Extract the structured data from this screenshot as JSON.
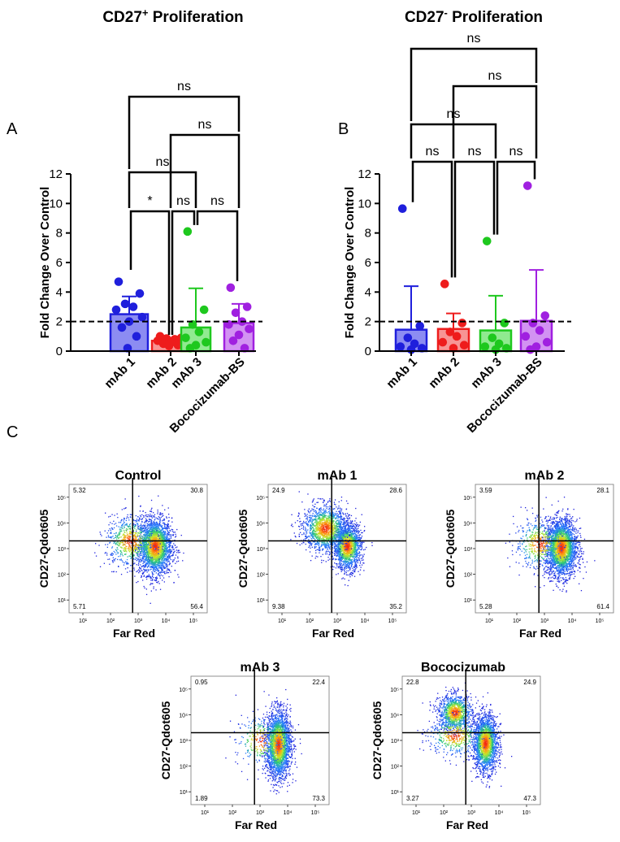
{
  "panel_letters": [
    "A",
    "B",
    "C"
  ],
  "chart_data": [
    {
      "type": "bar",
      "panel": "A",
      "title_main": "CD27",
      "title_sup": "+",
      "title_rest": " Proliferation",
      "ylabel": "Fold Change Over Control",
      "ylim": [
        0,
        12
      ],
      "yticks": [
        "0",
        "2",
        "4",
        "6",
        "8",
        "10",
        "12"
      ],
      "reference_line": 2,
      "categories": [
        "mAb 1",
        "mAb 2",
        "mAb 3",
        "Bococizumab-BS"
      ],
      "colors": [
        "#1f1fdc",
        "#ee1c1c",
        "#1ec81e",
        "#a020e0"
      ],
      "fill_colors": [
        "#8c8cf2",
        "#f79494",
        "#90ea90",
        "#d292f2"
      ],
      "means": [
        2.5,
        0.7,
        1.6,
        1.9
      ],
      "sd_upper": [
        3.7,
        0.9,
        4.25,
        3.2
      ],
      "points": [
        [
          4.7,
          3.9,
          3.2,
          3.0,
          2.8,
          2.3,
          2.0,
          1.6,
          1.0,
          0.2
        ],
        [
          1.0,
          0.9,
          0.85,
          0.8,
          0.7,
          0.6,
          0.55,
          0.5,
          0.4,
          0.35
        ],
        [
          8.1,
          2.8,
          1.8,
          1.3,
          0.9,
          0.6,
          0.4,
          0.2
        ],
        [
          4.3,
          3.0,
          2.6,
          2.0,
          1.8,
          1.5,
          1.1,
          0.7,
          0.2
        ]
      ],
      "brackets": [
        {
          "a": 0,
          "b": 1,
          "label": "*"
        },
        {
          "a": 1,
          "b": 2,
          "label": "ns"
        },
        {
          "a": 2,
          "b": 3,
          "label": "ns"
        },
        {
          "a": 0,
          "b": 2,
          "label": "ns"
        },
        {
          "a": 1,
          "b": 3,
          "label": "ns"
        },
        {
          "a": 0,
          "b": 3,
          "label": "ns"
        }
      ]
    },
    {
      "type": "bar",
      "panel": "B",
      "title_main": "CD27",
      "title_sup": "-",
      "title_rest": " Proliferation",
      "ylabel": "Fold Change Over Control",
      "ylim": [
        0,
        12
      ],
      "yticks": [
        "0",
        "2",
        "4",
        "6",
        "8",
        "10",
        "12"
      ],
      "reference_line": 2,
      "categories": [
        "mAb 1",
        "mAb 2",
        "mAb 3",
        "Bococizumab-BS"
      ],
      "colors": [
        "#1f1fdc",
        "#ee1c1c",
        "#1ec81e",
        "#a020e0"
      ],
      "fill_colors": [
        "#8c8cf2",
        "#f79494",
        "#90ea90",
        "#d292f2"
      ],
      "means": [
        1.45,
        1.5,
        1.4,
        2.05
      ],
      "sd_upper": [
        4.4,
        2.55,
        3.75,
        5.5
      ],
      "points": [
        [
          9.65,
          1.7,
          0.9,
          0.5,
          0.3,
          0.2,
          0.1
        ],
        [
          4.55,
          1.9,
          1.3,
          1.0,
          0.6,
          0.4,
          0.2
        ],
        [
          7.45,
          1.9,
          0.9,
          0.5,
          0.3,
          0.2,
          0.1
        ],
        [
          11.2,
          2.4,
          1.9,
          1.4,
          1.0,
          0.6,
          0.3,
          0.1
        ]
      ],
      "brackets": [
        {
          "a": 0,
          "b": 1,
          "label": "ns"
        },
        {
          "a": 1,
          "b": 2,
          "label": "ns"
        },
        {
          "a": 2,
          "b": 3,
          "label": "ns"
        },
        {
          "a": 0,
          "b": 2,
          "label": "ns"
        },
        {
          "a": 1,
          "b": 3,
          "label": "ns"
        },
        {
          "a": 0,
          "b": 3,
          "label": "ns"
        }
      ]
    },
    {
      "type": "scatter",
      "subtype": "flow-cytometry-density",
      "panel": "C",
      "xlabel": "Far Red",
      "ylabel": "CD27-Qdot605",
      "xticks": [
        "10¹",
        "10²",
        "10³",
        "10⁴",
        "10⁵"
      ],
      "yticks": [
        "10¹",
        "10²",
        "10³",
        "10⁴",
        "10⁵"
      ],
      "plots": [
        {
          "title": "Control",
          "quadrants": {
            "ul": "5.32",
            "ur": "30.8",
            "ll": "5.71",
            "lr": "56.4"
          },
          "clusters": [
            {
              "cx": 3.6,
              "cy": 3.1,
              "sx": 0.3,
              "sy": 0.55,
              "n": 2600
            },
            {
              "cx": 2.7,
              "cy": 3.3,
              "sx": 0.45,
              "sy": 0.5,
              "n": 700
            }
          ]
        },
        {
          "title": "mAb 1",
          "quadrants": {
            "ul": "24.9",
            "ur": "28.6",
            "ll": "9.38",
            "lr": "35.2"
          },
          "clusters": [
            {
              "cx": 3.35,
              "cy": 3.1,
              "sx": 0.25,
              "sy": 0.45,
              "n": 1700
            },
            {
              "cx": 2.55,
              "cy": 3.8,
              "sx": 0.4,
              "sy": 0.45,
              "n": 1500
            }
          ]
        },
        {
          "title": "mAb 2",
          "quadrants": {
            "ul": "3.59",
            "ur": "28.1",
            "ll": "5.28",
            "lr": "61.4"
          },
          "clusters": [
            {
              "cx": 3.6,
              "cy": 3.05,
              "sx": 0.28,
              "sy": 0.55,
              "n": 2800
            },
            {
              "cx": 2.8,
              "cy": 3.2,
              "sx": 0.45,
              "sy": 0.5,
              "n": 500
            }
          ]
        },
        {
          "title": "mAb 3",
          "quadrants": {
            "ul": "0.95",
            "ur": "22.4",
            "ll": "1.89",
            "lr": "73.3"
          },
          "clusters": [
            {
              "cx": 3.65,
              "cy": 2.85,
              "sx": 0.22,
              "sy": 0.65,
              "n": 2600
            },
            {
              "cx": 3.0,
              "cy": 3.0,
              "sx": 0.45,
              "sy": 0.5,
              "n": 300
            }
          ]
        },
        {
          "title": "Bococizumab",
          "quadrants": {
            "ul": "22.8",
            "ur": "24.9",
            "ll": "3.27",
            "lr": "47.3"
          },
          "clusters": [
            {
              "cx": 3.5,
              "cy": 2.9,
              "sx": 0.22,
              "sy": 0.55,
              "n": 2000
            },
            {
              "cx": 2.4,
              "cy": 4.1,
              "sx": 0.3,
              "sy": 0.35,
              "n": 1100
            },
            {
              "cx": 2.4,
              "cy": 3.2,
              "sx": 0.5,
              "sy": 0.4,
              "n": 500
            }
          ]
        }
      ]
    }
  ]
}
